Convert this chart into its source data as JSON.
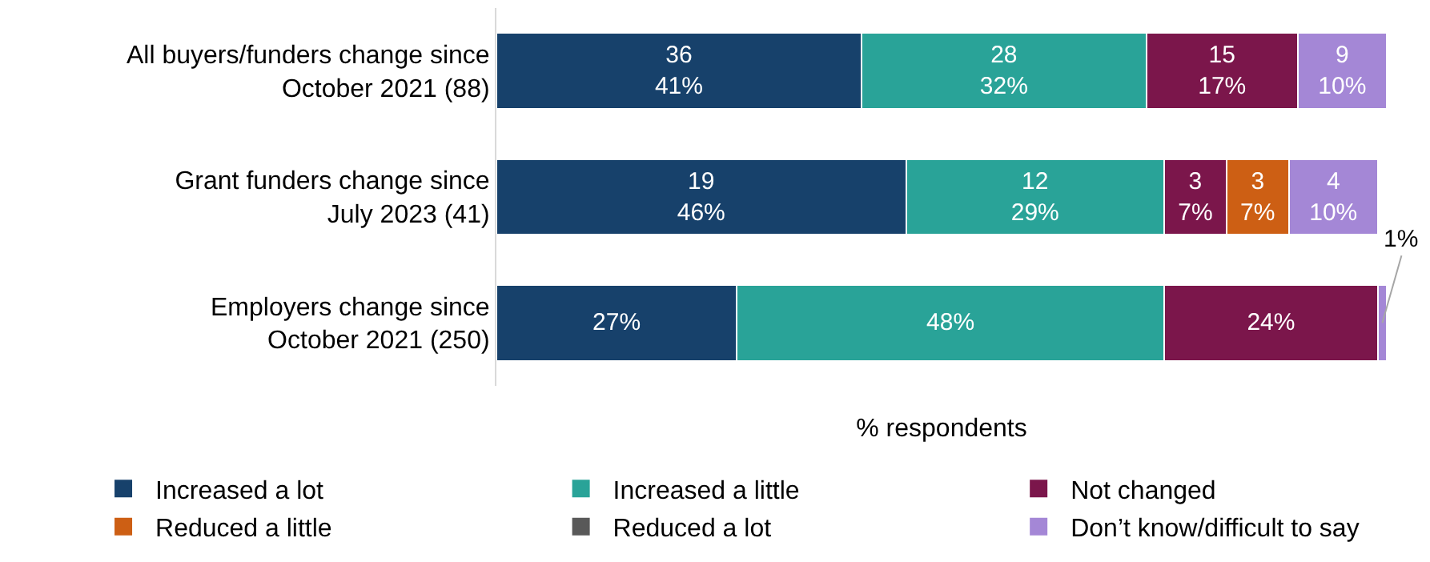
{
  "chart_data": {
    "type": "bar",
    "orientation": "horizontal",
    "stacked": true,
    "xlabel": "% respondents",
    "legend": "bottom",
    "tick_labels": "y",
    "categories": [
      "All buyers/funders change since\nOctober 2021 (88)",
      "Grant funders change since\nJuly 2023 (41)",
      "Employers change since\nOctober 2021 (250)"
    ],
    "series": [
      {
        "name": "Increased a lot",
        "color": "#17416b",
        "values": [
          41,
          46,
          27
        ],
        "value_labels": [
          "36\n41%",
          "19\n46%",
          "27%"
        ]
      },
      {
        "name": "Increased a little",
        "color": "#29a398",
        "values": [
          32,
          29,
          48
        ],
        "value_labels": [
          "28\n32%",
          "12\n29%",
          "48%"
        ]
      },
      {
        "name": "Not changed",
        "color": "#7b164b",
        "values": [
          17,
          7,
          24
        ],
        "value_labels": [
          "15\n17%",
          "3\n7%",
          "24%"
        ]
      },
      {
        "name": "Reduced a little",
        "color": "#cd5f14",
        "values": [
          0,
          7,
          0
        ],
        "value_labels": [
          null,
          "3\n7%",
          null
        ]
      },
      {
        "name": "Reduced a lot",
        "color": "#595959",
        "values": [
          0,
          0,
          0
        ],
        "value_labels": [
          null,
          null,
          null
        ]
      },
      {
        "name": "Don’t know/difficult to say",
        "color": "#a487d6",
        "values": [
          10,
          10,
          1
        ],
        "value_labels": [
          "9\n10%",
          "4\n10%",
          null
        ]
      }
    ],
    "annotations": [
      {
        "text": "1%",
        "x": 99.5,
        "y": "Employers change since\nOctober 2021 (250)"
      }
    ]
  }
}
